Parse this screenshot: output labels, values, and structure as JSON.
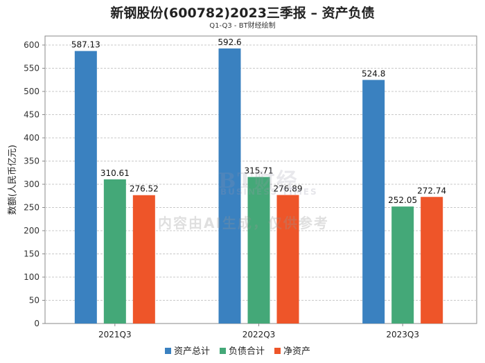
{
  "chart_data": {
    "type": "bar",
    "title": "新钢股份(600782)2023三季报 – 资产负债",
    "subtitle": "Q1-Q3 - BT财经绘制",
    "xlabel": "",
    "ylabel": "数额(人民币亿元)",
    "ylim": [
      0,
      630
    ],
    "yticks": [
      0,
      50,
      100,
      150,
      200,
      250,
      300,
      350,
      400,
      450,
      500,
      550,
      600
    ],
    "grid": true,
    "legend_position": "bottom-center",
    "categories": [
      "2021Q3",
      "2022Q3",
      "2023Q3"
    ],
    "series": [
      {
        "name": "资产总计",
        "color": "#3a81c0",
        "values": [
          587.13,
          592.6,
          524.8
        ],
        "labels": [
          "587.13",
          "592.6",
          "524.8"
        ]
      },
      {
        "name": "负债合计",
        "color": "#44a878",
        "values": [
          310.61,
          315.71,
          252.05
        ],
        "labels": [
          "310.61",
          "315.71",
          "252.05"
        ]
      },
      {
        "name": "净资产",
        "color": "#ee5529",
        "values": [
          276.52,
          276.89,
          272.74
        ],
        "labels": [
          "276.52",
          "276.89",
          "272.74"
        ]
      }
    ]
  },
  "watermark": {
    "brand": "BT财经",
    "brand_en": "BUSINESS TIMES",
    "notice": "内容由AI生成，仅供参考"
  }
}
